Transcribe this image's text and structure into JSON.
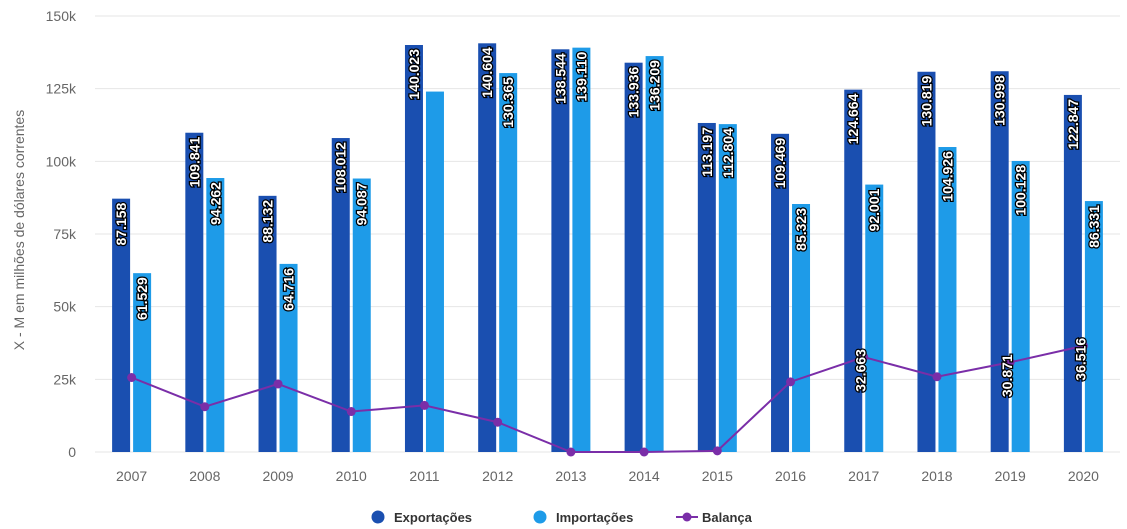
{
  "chart_data": {
    "type": "bar",
    "ylabel": "X - M em milhões de dólares correntes",
    "ylim": [
      0,
      150000
    ],
    "yticks": [
      0,
      25000,
      50000,
      75000,
      100000,
      125000,
      150000
    ],
    "ytick_labels": [
      "0",
      "25k",
      "50k",
      "75k",
      "100k",
      "125k",
      "150k"
    ],
    "categories": [
      "2007",
      "2008",
      "2009",
      "2010",
      "2011",
      "2012",
      "2013",
      "2014",
      "2015",
      "2016",
      "2017",
      "2018",
      "2019",
      "2020"
    ],
    "grid": true,
    "legend_position": "bottom-center",
    "series": [
      {
        "name": "Exportações",
        "kind": "bar",
        "color": "#1a4fb0",
        "values": [
          87158,
          109841,
          88132,
          108012,
          140023,
          140604,
          138544,
          133936,
          113197,
          109469,
          124664,
          130819,
          130998,
          122847
        ],
        "labels": [
          "87.158",
          "109.841",
          "88.132",
          "108.012",
          "140.023",
          "140.604",
          "138.544",
          "133.936",
          "113.197",
          "109.469",
          "124.664",
          "130.819",
          "130.998",
          "122.847"
        ]
      },
      {
        "name": "Importações",
        "kind": "bar",
        "color": "#1e9be8",
        "values": [
          61529,
          94262,
          64716,
          94087,
          124000,
          130365,
          139110,
          136209,
          112804,
          85323,
          92001,
          104926,
          100128,
          86331
        ],
        "labels": [
          "61.529",
          "94.262",
          "64.716",
          "94.087",
          "",
          "130.365",
          "139.110",
          "136.209",
          "112.804",
          "85.323",
          "92.001",
          "104.926",
          "100.128",
          "86.331"
        ]
      },
      {
        "name": "Balança",
        "kind": "line",
        "color": "#7a2ea8",
        "values": [
          25629,
          15579,
          23416,
          13925,
          16023,
          10239,
          0,
          0,
          393,
          24146,
          32663,
          25893,
          30871,
          36516
        ],
        "labels": [
          "",
          "",
          "",
          "",
          "",
          "",
          "",
          "",
          "",
          "",
          "32.663",
          "",
          "30.871",
          "36.516"
        ]
      }
    ]
  }
}
